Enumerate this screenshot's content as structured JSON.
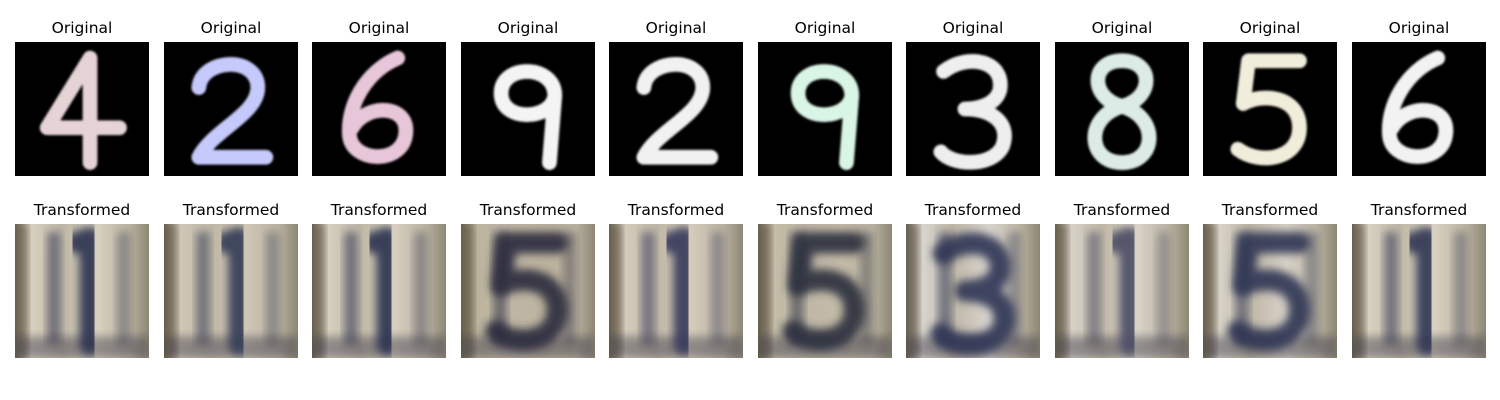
{
  "rows": [
    {
      "label": "Original",
      "kind": "mnist",
      "items": [
        {
          "digit": "4",
          "fg": "#e5d3d6",
          "bg": "#000000"
        },
        {
          "digit": "2",
          "fg": "#c5c9fb",
          "bg": "#000000"
        },
        {
          "digit": "6",
          "fg": "#e7c6d9",
          "bg": "#000000"
        },
        {
          "digit": "9",
          "fg": "#f4f4f4",
          "bg": "#000000"
        },
        {
          "digit": "2",
          "fg": "#f1f1f1",
          "bg": "#000000"
        },
        {
          "digit": "9",
          "fg": "#d9f5e6",
          "bg": "#000000"
        },
        {
          "digit": "3",
          "fg": "#eeeeee",
          "bg": "#000000"
        },
        {
          "digit": "8",
          "fg": "#dcebe5",
          "bg": "#000000"
        },
        {
          "digit": "5",
          "fg": "#f1eddb",
          "bg": "#000000"
        },
        {
          "digit": "6",
          "fg": "#f2f2f2",
          "bg": "#000000"
        }
      ]
    },
    {
      "label": "Transformed",
      "kind": "svhn",
      "items": [
        {
          "digit": "1",
          "fg": "#2b3350",
          "bg": "#d7d0bf"
        },
        {
          "digit": "1",
          "fg": "#333a55",
          "bg": "#cfc6b6"
        },
        {
          "digit": "1",
          "fg": "#2c3350",
          "bg": "#d6cfbf"
        },
        {
          "digit": "5",
          "fg": "#2a2c3c",
          "bg": "#bdb49e"
        },
        {
          "digit": "1",
          "fg": "#34395a",
          "bg": "#d4cbbb"
        },
        {
          "digit": "5",
          "fg": "#2a2d3e",
          "bg": "#c4bca7"
        },
        {
          "digit": "3",
          "fg": "#2e3654",
          "bg": "#d9d5cf"
        },
        {
          "digit": "1",
          "fg": "#4a4c64",
          "bg": "#d8d3c8"
        },
        {
          "digit": "5",
          "fg": "#2f3652",
          "bg": "#d8d3c8"
        },
        {
          "digit": "1",
          "fg": "#2e3452",
          "bg": "#d8d1c1"
        }
      ]
    }
  ]
}
